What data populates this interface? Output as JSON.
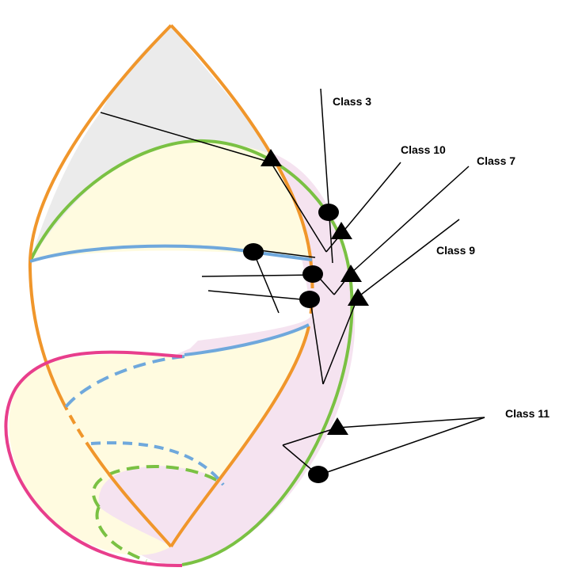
{
  "labels": {
    "class3": "Class 3",
    "class10": "Class 10",
    "class7": "Class 7",
    "class9": "Class 9",
    "class11": "Class 11"
  },
  "colors": {
    "orange": "#F0962B",
    "green": "#7AC143",
    "blue": "#6FA8DC",
    "pink": "#E83E8C",
    "gray_fill": "#EBEBEB",
    "yellow_fill": "#FFFBE0",
    "pink_fill": "#F5E3F0"
  }
}
